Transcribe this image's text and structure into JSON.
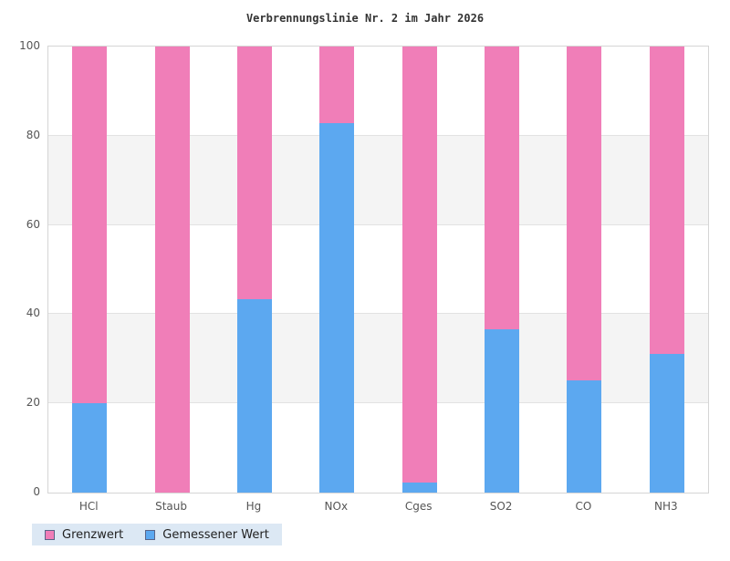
{
  "title": "Verbrennungslinie Nr. 2 im Jahr 2026",
  "chart_data": {
    "type": "bar",
    "stacked": true,
    "title": "Verbrennungslinie Nr. 2 im Jahr 2026",
    "categories": [
      "HCl",
      "Staub",
      "Hg",
      "NOx",
      "Cges",
      "SO2",
      "CO",
      "NH3"
    ],
    "series": [
      {
        "name": "Grenzwert",
        "color": "#f07eb8",
        "values": [
          80.0,
          100.0,
          56.6,
          17.2,
          97.8,
          63.4,
          74.8,
          68.9
        ]
      },
      {
        "name": "Gemessener Wert",
        "color": "#5ca8f0",
        "values": [
          20.0,
          0.0,
          43.4,
          82.8,
          2.2,
          36.6,
          25.2,
          31.1
        ]
      }
    ],
    "xlabel": "",
    "ylabel": "",
    "ylim": [
      0,
      100
    ],
    "yticks": [
      0,
      20,
      40,
      60,
      80,
      100
    ],
    "grid": true,
    "legend_position": "bottom-left"
  },
  "legend": {
    "items": [
      {
        "label": "Grenzwert",
        "color": "#f07eb8"
      },
      {
        "label": "Gemessener Wert",
        "color": "#5ca8f0"
      }
    ],
    "background": "#dce8f4"
  },
  "colors": {
    "background": "#ffffff",
    "grid_line": "#e2e2e2",
    "plot_border": "#d5d5d5",
    "band_gray": "#f4f4f4",
    "tick_label": "#555555",
    "title_text": "#333333"
  }
}
